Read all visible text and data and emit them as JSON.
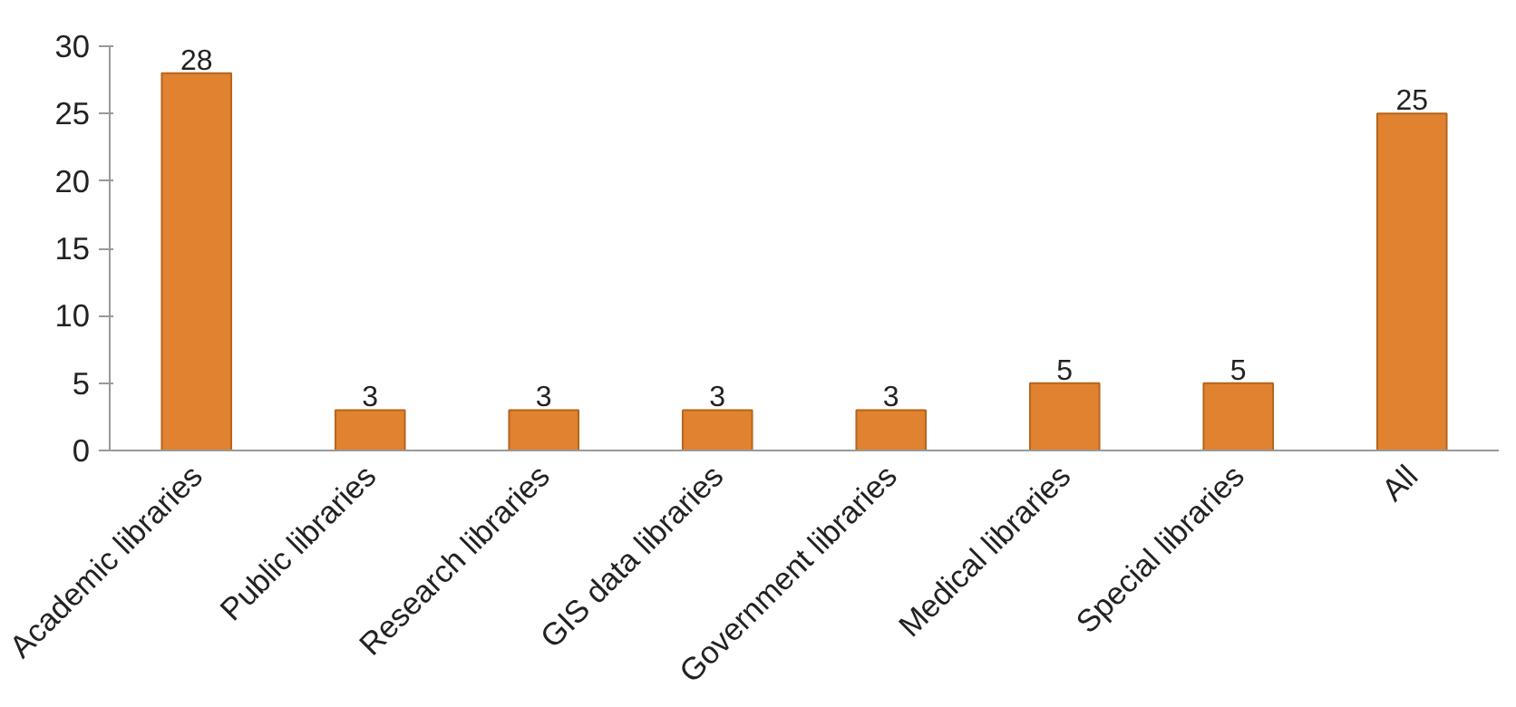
{
  "chart_data": {
    "type": "bar",
    "categories": [
      "Academic libraries",
      "Public libraries",
      "Research libraries",
      "GIS data libraries",
      "Government libraries",
      "Medical libraries",
      "Special libraries",
      "All"
    ],
    "values": [
      28,
      3,
      3,
      3,
      3,
      5,
      5,
      25
    ],
    "color": "#e0822f",
    "ylim": [
      0,
      30
    ],
    "yticks": [
      0,
      5,
      10,
      15,
      20,
      25,
      30
    ],
    "data_labels": true,
    "grid": false
  }
}
